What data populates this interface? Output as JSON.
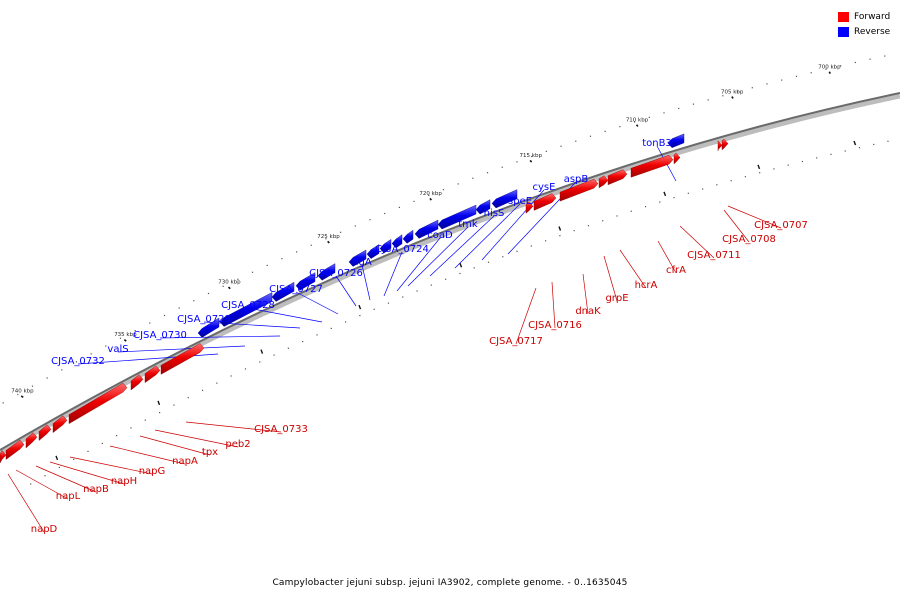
{
  "legend": {
    "forward_label": "Forward",
    "reverse_label": "Reverse",
    "forward_color": "#ff0000",
    "reverse_color": "#0000ff"
  },
  "caption": "Campylobacter jejuni subsp. jejuni IA3902, complete genome. - 0..1635045",
  "ticks": [
    "700 kbp",
    "705 kbp",
    "710 kbp",
    "715 kbp",
    "720 kbp",
    "725 kbp",
    "730 kbp",
    "735 kbp",
    "740 kbp"
  ],
  "reverse_labels": [
    "tonB3",
    "aspB",
    "cysE",
    "speE",
    "hisS",
    "tmk",
    "coaD",
    "CJSA_0724",
    "flgA",
    "CJSA_0726",
    "CJSA_0727",
    "CJSA_0728",
    "CJSA_0729",
    "CJSA_0730",
    "valS",
    "CJSA_0732"
  ],
  "forward_labels": [
    "CJSA_0707",
    "CJSA_0708",
    "CJSA_0711",
    "cfrA",
    "hcrA",
    "grpE",
    "dnaK",
    "CJSA_0716",
    "CJSA_0717",
    "CJSA_0733",
    "peb2",
    "tpx",
    "napA",
    "napG",
    "napH",
    "napB",
    "napL",
    "napD"
  ]
}
